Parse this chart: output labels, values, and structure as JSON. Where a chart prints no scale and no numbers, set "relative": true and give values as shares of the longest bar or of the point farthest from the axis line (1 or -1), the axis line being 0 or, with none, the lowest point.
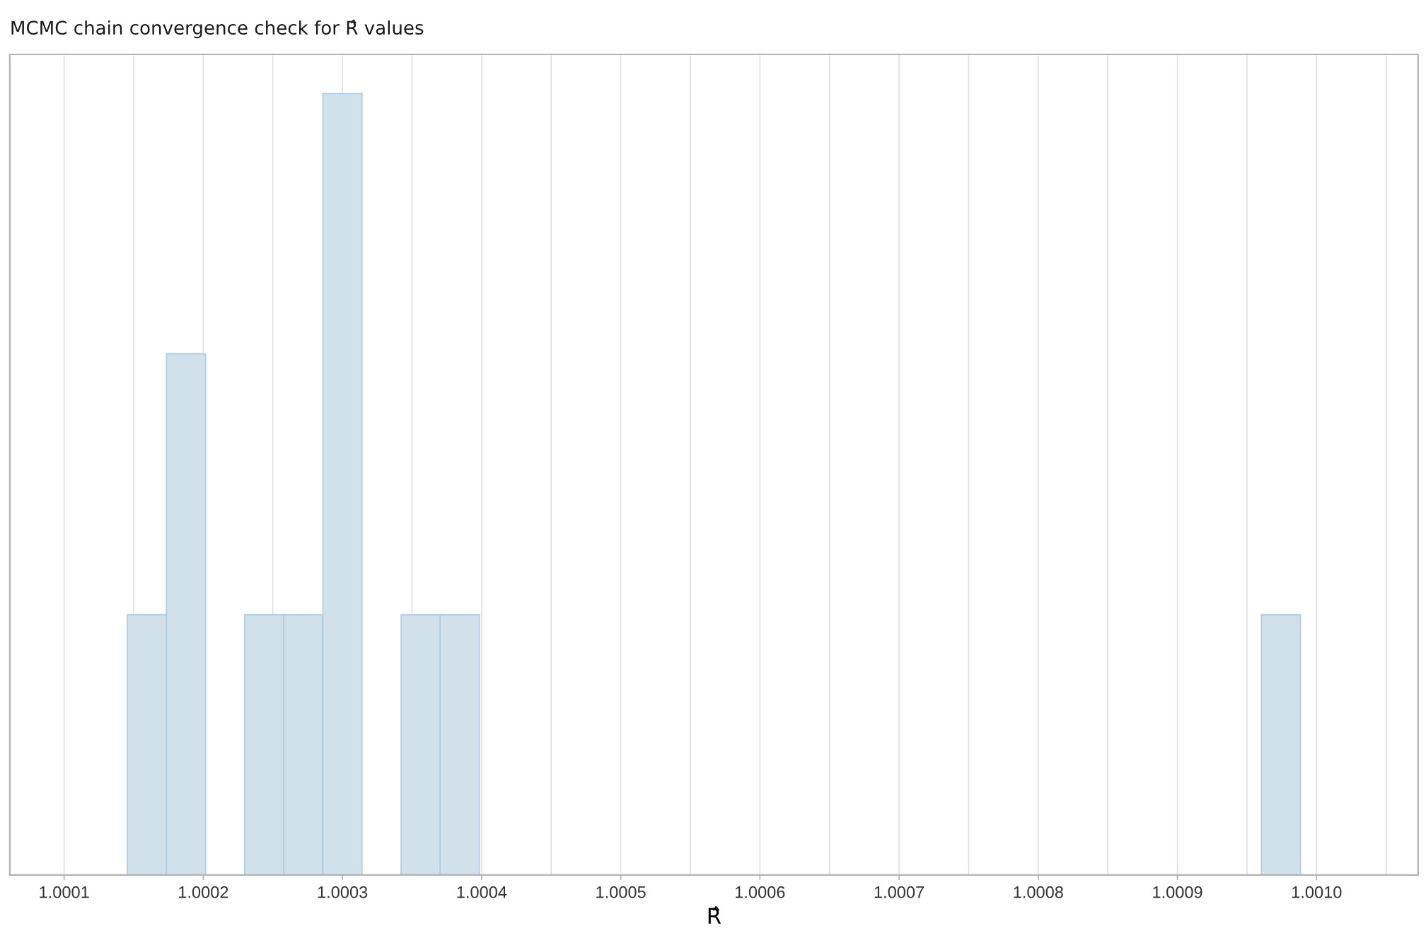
{
  "chart_data": {
    "type": "bar",
    "title": "MCMC chain convergence check for R̂ values",
    "xlabel": "R̂",
    "x": [
      1.0001595,
      1.0001876,
      1.0002157,
      1.0002438,
      1.0002719,
      1.0003,
      1.0003281,
      1.0003562,
      1.0003843,
      1.0004124,
      1.0004405,
      1.0004686,
      1.0004967,
      1.0005248,
      1.0005529,
      1.000581,
      1.0006091,
      1.0006372,
      1.0006653,
      1.0006934,
      1.0007215,
      1.0007496,
      1.0007777,
      1.0008058,
      1.0008339,
      1.000862,
      1.0008901,
      1.0009182,
      1.0009463,
      1.0009744
    ],
    "values": [
      0.333,
      0.667,
      0,
      0.333,
      0.333,
      1,
      0,
      0.333,
      0.333,
      0,
      0,
      0,
      0,
      0,
      0,
      0,
      0,
      0,
      0,
      0,
      0,
      0,
      0,
      0,
      0,
      0,
      0,
      0,
      0,
      0.333
    ],
    "relative": true,
    "color": "#d1e1ec",
    "xlim": [
      1.000061,
      1.001073
    ],
    "xticks": [
      {
        "value": 1.0001,
        "label": "1.0001"
      },
      {
        "value": 1.0002,
        "label": "1.0002"
      },
      {
        "value": 1.0003,
        "label": "1.0003"
      },
      {
        "value": 1.0004,
        "label": "1.0004"
      },
      {
        "value": 1.0005,
        "label": "1.0005"
      },
      {
        "value": 1.0006,
        "label": "1.0006"
      },
      {
        "value": 1.0007,
        "label": "1.0007"
      },
      {
        "value": 1.0008,
        "label": "1.0008"
      },
      {
        "value": 1.0009,
        "label": "1.0009"
      },
      {
        "value": 1.001,
        "label": "1.0010"
      }
    ],
    "grid": "x",
    "tick_labels": "x"
  }
}
